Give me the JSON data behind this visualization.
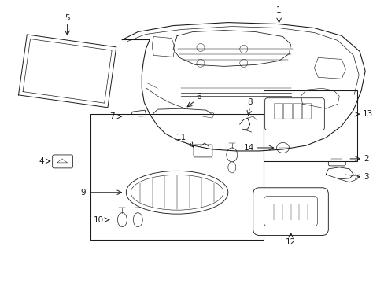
{
  "background_color": "#ffffff",
  "line_color": "#1a1a1a",
  "fig_width": 4.89,
  "fig_height": 3.6,
  "dpi": 100,
  "label_fontsize": 7.5,
  "lw": 0.7
}
